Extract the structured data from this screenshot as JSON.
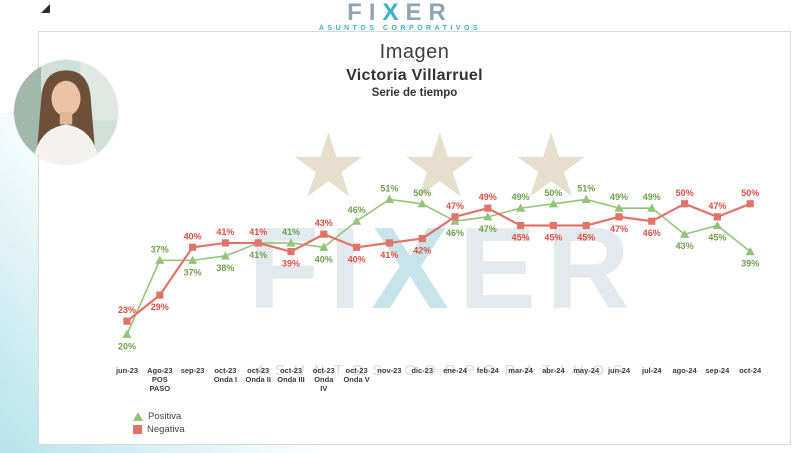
{
  "brand": {
    "logo_left": "FI",
    "logo_x": "X",
    "logo_right": "ER",
    "logo_subtitle": "ASUNTOS CORPORATIVOS",
    "accent_color": "#35b4c7"
  },
  "card": {
    "title": "Imagen",
    "subtitle": "Victoria Villarruel",
    "caption": "Serie de tiempo"
  },
  "watermark": {
    "logo_left": "FI",
    "logo_x": "X",
    "logo_right": "ER",
    "subtitle": "ASUNTOS CORPORATIVOS",
    "stars": "★ ★ ★"
  },
  "chart_data": {
    "type": "line",
    "title": "Imagen Victoria Villarruel — Serie de tiempo",
    "value_suffix": "%",
    "ylim": [
      15,
      58
    ],
    "grid": false,
    "legend_position": "bottom-left",
    "categories": [
      [
        "jun-23"
      ],
      [
        "Ago-23",
        "POS",
        "PASO"
      ],
      [
        "sep-23"
      ],
      [
        "oct-23",
        "Onda I"
      ],
      [
        "oct-23",
        "Onda II"
      ],
      [
        "oct-23",
        "Onda III"
      ],
      [
        "oct-23",
        "Onda",
        "IV"
      ],
      [
        "oct-23",
        "Onda V"
      ],
      [
        "nov-23"
      ],
      [
        "dic-23"
      ],
      [
        "ene-24"
      ],
      [
        "feb-24"
      ],
      [
        "mar-24"
      ],
      [
        "abr-24"
      ],
      [
        "may-24"
      ],
      [
        "jun-24"
      ],
      [
        "jul-24"
      ],
      [
        "ago-24"
      ],
      [
        "sep-24"
      ],
      [
        "oct-24"
      ]
    ],
    "series": [
      {
        "name": "Positiva",
        "marker": "triangle",
        "color": "#94c47c",
        "label_color": "#6fa24b",
        "values": [
          20,
          37,
          37,
          38,
          41,
          41,
          40,
          46,
          51,
          50,
          46,
          47,
          49,
          50,
          51,
          49,
          49,
          43,
          45,
          39
        ]
      },
      {
        "name": "Negativa",
        "marker": "square",
        "color": "#e0736a",
        "label_color": "#de4f41",
        "values": [
          23,
          29,
          40,
          41,
          41,
          39,
          43,
          40,
          41,
          42,
          47,
          49,
          45,
          45,
          45,
          47,
          46,
          50,
          47,
          50
        ]
      }
    ]
  }
}
